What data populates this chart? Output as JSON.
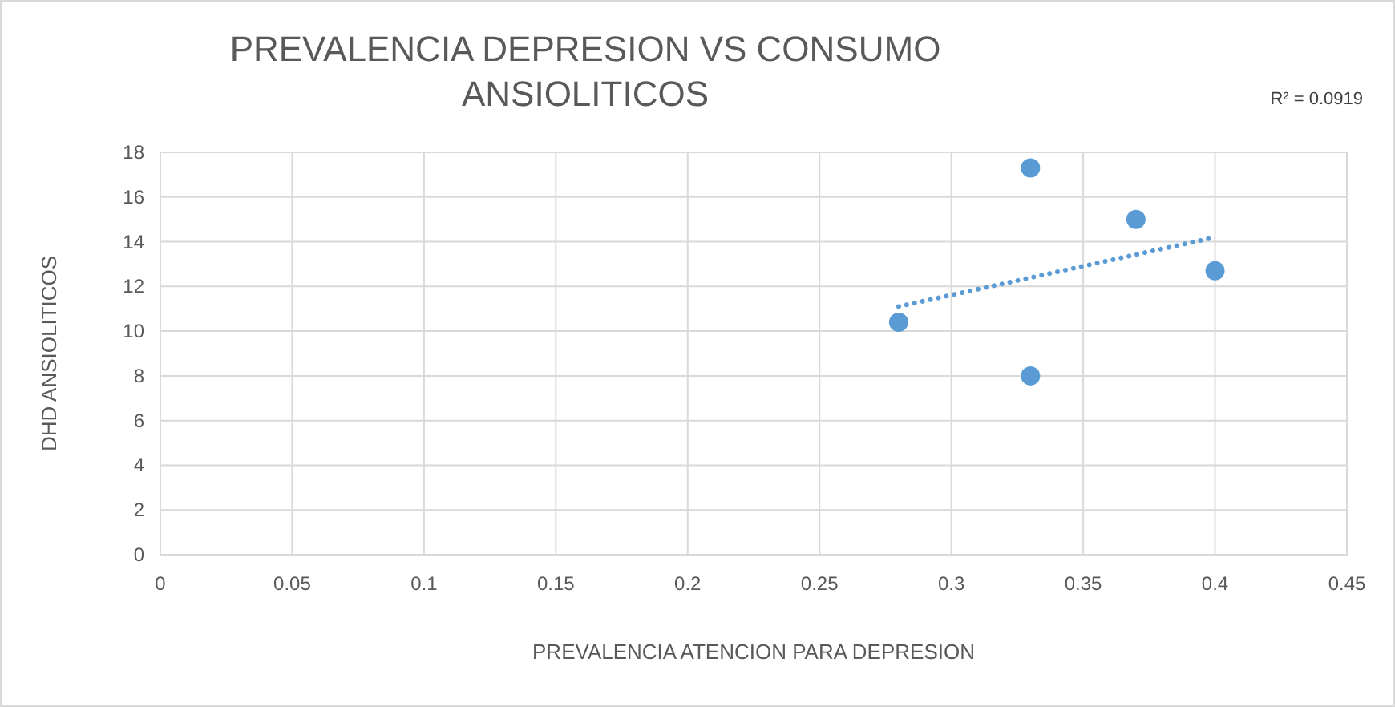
{
  "chart_data": {
    "type": "scatter",
    "title": "PREVALENCIA DEPRESION VS CONSUMO ANSIOLITICOS",
    "xlabel": "PREVALENCIA ATENCION PARA DEPRESION",
    "ylabel": "DHD ANSIOLITICOS",
    "x": [
      0.28,
      0.33,
      0.37,
      0.4,
      0.33
    ],
    "series": [
      {
        "color": "#5b9bd5",
        "values": [
          10.4,
          17.3,
          15.0,
          12.7,
          8.0
        ],
        "marker": "circle"
      },
      {
        "type": "line",
        "color": "#5b9bd5",
        "x": [
          0.28,
          0.4
        ],
        "values": [
          11.1,
          14.2
        ],
        "line_style": "dotted"
      }
    ],
    "xlim": [
      0,
      0.45
    ],
    "xticks": [
      0,
      0.05,
      0.1,
      0.15,
      0.2,
      0.25,
      0.3,
      0.35,
      0.4,
      0.45
    ],
    "ylim": [
      0,
      18
    ],
    "yticks": [
      0,
      2,
      4,
      6,
      8,
      10,
      12,
      14,
      16,
      18
    ],
    "grid": true,
    "annotations": [
      "R² = 0.0919"
    ]
  }
}
